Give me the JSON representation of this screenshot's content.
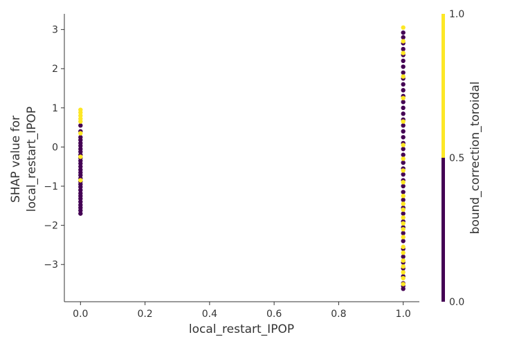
{
  "chart_data": {
    "type": "scatter",
    "title": "",
    "xlabel": "local_restart_IPOP",
    "ylabel_lines": [
      "SHAP value for",
      "local_restart_IPOP"
    ],
    "xlim": [
      -0.05,
      1.05
    ],
    "ylim": [
      -3.95,
      3.4
    ],
    "xticks": [
      0.0,
      0.2,
      0.4,
      0.6,
      0.8,
      1.0
    ],
    "xtick_labels": [
      "0.0",
      "0.2",
      "0.4",
      "0.6",
      "0.8",
      "1.0"
    ],
    "yticks": [
      -3,
      -2,
      -1,
      0,
      1,
      2,
      3
    ],
    "ytick_labels": [
      "−3",
      "−2",
      "−1",
      "0",
      "1",
      "2",
      "3"
    ],
    "grid": false,
    "colorbar": {
      "label": "bound_correction_toroidal",
      "range": [
        0.0,
        1.0
      ],
      "ticks": [
        0.0,
        0.5,
        1.0
      ],
      "tick_labels": [
        "0.0",
        "0.5",
        "1.0"
      ],
      "color_low": "#440154",
      "color_high": "#fde725"
    },
    "series": [
      {
        "name": "bound_correction_toroidal = 0",
        "color": "#440154",
        "points": [
          [
            0,
            -1.7
          ],
          [
            0,
            -1.62
          ],
          [
            0,
            -1.55
          ],
          [
            0,
            -1.48
          ],
          [
            0,
            -1.4
          ],
          [
            0,
            -1.32
          ],
          [
            0,
            -1.25
          ],
          [
            0,
            -1.18
          ],
          [
            0,
            -1.1
          ],
          [
            0,
            -1.02
          ],
          [
            0,
            -0.95
          ],
          [
            0,
            -0.88
          ],
          [
            0,
            -0.8
          ],
          [
            0,
            -0.72
          ],
          [
            0,
            -0.65
          ],
          [
            0,
            -0.58
          ],
          [
            0,
            -0.5
          ],
          [
            0,
            -0.42
          ],
          [
            0,
            -0.35
          ],
          [
            0,
            -0.28
          ],
          [
            0,
            -0.2
          ],
          [
            0,
            -0.12
          ],
          [
            0,
            -0.05
          ],
          [
            0,
            0.03
          ],
          [
            0,
            0.1
          ],
          [
            0,
            0.18
          ],
          [
            0,
            0.25
          ],
          [
            0,
            0.4
          ],
          [
            0,
            0.55
          ],
          [
            1,
            -3.62
          ],
          [
            1,
            -3.55
          ],
          [
            1,
            -3.48
          ],
          [
            1,
            -3.3
          ],
          [
            1,
            -3.1
          ],
          [
            1,
            -2.95
          ],
          [
            1,
            -2.8
          ],
          [
            1,
            -2.6
          ],
          [
            1,
            -2.4
          ],
          [
            1,
            -2.2
          ],
          [
            1,
            -2.05
          ],
          [
            1,
            -1.9
          ],
          [
            1,
            -1.7
          ],
          [
            1,
            -1.55
          ],
          [
            1,
            -1.35
          ],
          [
            1,
            -1.15
          ],
          [
            1,
            -1.0
          ],
          [
            1,
            -0.85
          ],
          [
            1,
            -0.7
          ],
          [
            1,
            -0.55
          ],
          [
            1,
            -0.4
          ],
          [
            1,
            -0.2
          ],
          [
            1,
            -0.05
          ],
          [
            1,
            0.1
          ],
          [
            1,
            0.25
          ],
          [
            1,
            0.4
          ],
          [
            1,
            0.55
          ],
          [
            1,
            0.7
          ],
          [
            1,
            0.85
          ],
          [
            1,
            1.0
          ],
          [
            1,
            1.15
          ],
          [
            1,
            1.3
          ],
          [
            1,
            1.45
          ],
          [
            1,
            1.6
          ],
          [
            1,
            1.75
          ],
          [
            1,
            1.9
          ],
          [
            1,
            2.05
          ],
          [
            1,
            2.2
          ],
          [
            1,
            2.35
          ],
          [
            1,
            2.5
          ],
          [
            1,
            2.65
          ],
          [
            1,
            2.8
          ],
          [
            1,
            2.92
          ]
        ]
      },
      {
        "name": "bound_correction_toroidal = 1",
        "color": "#fde725",
        "points": [
          [
            0,
            0.95
          ],
          [
            0,
            0.88
          ],
          [
            0,
            0.8
          ],
          [
            0,
            0.72
          ],
          [
            0,
            0.65
          ],
          [
            0,
            0.35
          ],
          [
            0,
            -0.85
          ],
          [
            0,
            -0.25
          ],
          [
            1,
            -3.5
          ],
          [
            1,
            -3.35
          ],
          [
            1,
            -3.2
          ],
          [
            1,
            -3.05
          ],
          [
            1,
            -2.9
          ],
          [
            1,
            -2.7
          ],
          [
            1,
            -2.55
          ],
          [
            1,
            -2.3
          ],
          [
            1,
            -2.1
          ],
          [
            1,
            -1.95
          ],
          [
            1,
            -1.8
          ],
          [
            1,
            -1.6
          ],
          [
            1,
            -1.45
          ],
          [
            1,
            -1.25
          ],
          [
            1,
            -0.9
          ],
          [
            1,
            -0.6
          ],
          [
            1,
            -0.3
          ],
          [
            1,
            0.05
          ],
          [
            1,
            0.65
          ],
          [
            1,
            1.25
          ],
          [
            1,
            1.8
          ],
          [
            1,
            2.4
          ],
          [
            1,
            2.7
          ],
          [
            1,
            3.05
          ]
        ]
      }
    ]
  }
}
